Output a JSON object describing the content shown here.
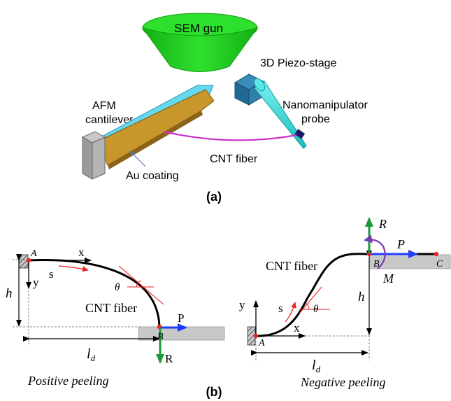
{
  "panel_a": {
    "label": "(a)",
    "sem_gun": "SEM gun",
    "piezo_stage": "3D Piezo-stage",
    "probe_line1": "Nanomanipulator",
    "probe_line2": "probe",
    "afm_line1": "AFM",
    "afm_line2": "cantilever",
    "cnt_fiber": "CNT fiber",
    "au_coating": "Au coating"
  },
  "panel_b": {
    "label": "(b)",
    "positive": {
      "caption": "Positive peeling",
      "point_a": "A",
      "point_b": "B",
      "x_axis": "x",
      "y_axis": "y",
      "s": "s",
      "theta": "θ",
      "h": "h",
      "ld_main": "l",
      "ld_sub": "d",
      "fiber": "CNT fiber",
      "force_p": "P",
      "force_r": "R"
    },
    "negative": {
      "caption": "Negative peeling",
      "point_a": "A",
      "point_b": "B",
      "point_c": "C",
      "x_axis": "x",
      "y_axis": "y",
      "s": "s",
      "theta": "θ",
      "h": "h",
      "ld_main": "l",
      "ld_sub": "d",
      "fiber": "CNT fiber",
      "force_p": "P",
      "force_r": "R",
      "moment_m": "M"
    }
  },
  "colors": {
    "sem_gun": "#22dd22",
    "probe": "#33dddd",
    "stage": "#2a7aa8",
    "cantilever": "#c8962a",
    "au_coating": "#66d8ee",
    "support": "#a8a8a8",
    "fiber_a": "#cc33cc",
    "arrow_p": "#1f3fff",
    "arrow_r": "#1a9a3a",
    "moment": "#7a3ab0",
    "annot": "#ee2222",
    "substrate": "#c8c8c8"
  }
}
